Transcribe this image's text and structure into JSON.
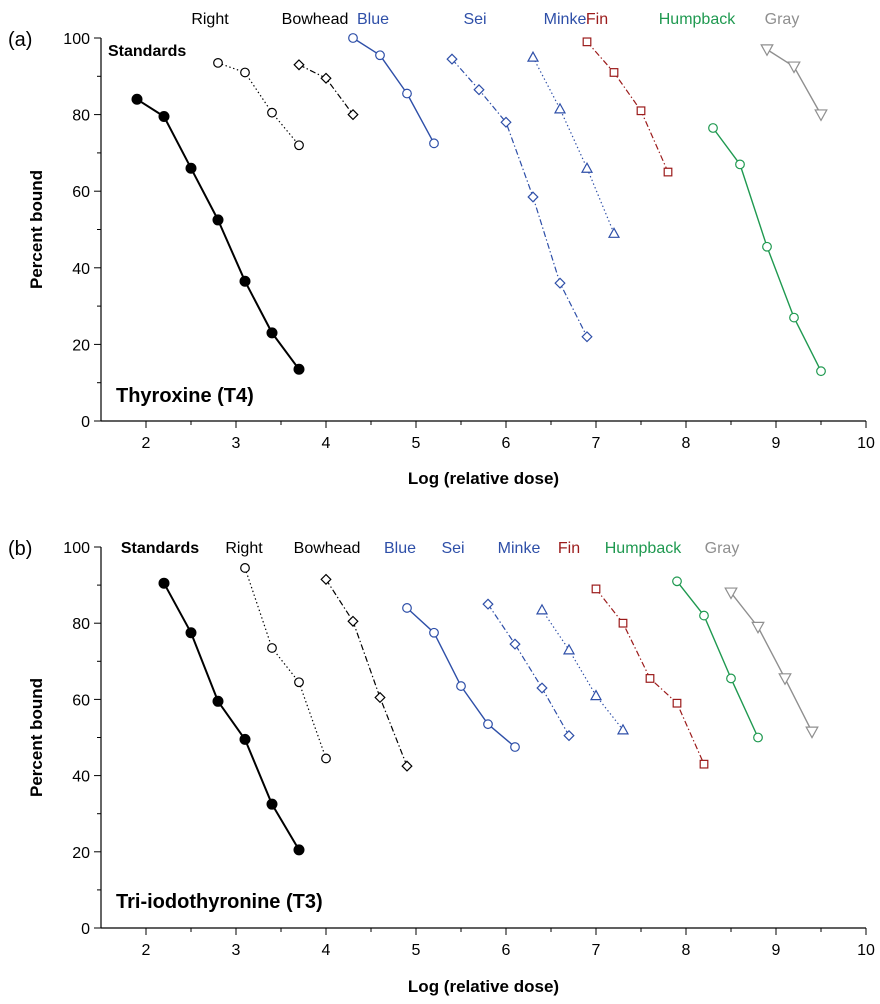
{
  "chart_data": [
    {
      "type": "line",
      "panel_letter": "(a)",
      "title": "Thyroxine (T4)",
      "xlabel": "Log (relative dose)",
      "ylabel": "Percent bound",
      "xlim": [
        1.5,
        10
      ],
      "ylim": [
        0,
        100
      ],
      "xticks": [
        "2",
        "3",
        "4",
        "5",
        "6",
        "7",
        "8",
        "9",
        "10"
      ],
      "yticks": [
        "0",
        "20",
        "40",
        "60",
        "80",
        "100"
      ],
      "grid": false,
      "series": [
        {
          "name": "Standards",
          "color": "#000000",
          "marker": "filled-circle",
          "line": "solid",
          "x": [
            1.9,
            2.2,
            2.5,
            2.8,
            3.1,
            3.4,
            3.7
          ],
          "y": [
            84,
            79.5,
            66,
            52.5,
            36.5,
            23,
            13.5
          ]
        },
        {
          "name": "Right",
          "color": "#000000",
          "marker": "circle",
          "line": "dotted",
          "x": [
            2.8,
            3.1,
            3.4,
            3.7
          ],
          "y": [
            93.5,
            91,
            80.5,
            72
          ]
        },
        {
          "name": "Bowhead",
          "color": "#000000",
          "marker": "diamond",
          "line": "dashdot",
          "x": [
            3.7,
            4.0,
            4.3
          ],
          "y": [
            93,
            89.5,
            80
          ]
        },
        {
          "name": "Blue",
          "color": "#2e4fa8",
          "marker": "circle",
          "line": "solid",
          "x": [
            4.3,
            4.6,
            4.9,
            5.2
          ],
          "y": [
            100,
            95.5,
            85.5,
            72.5
          ]
        },
        {
          "name": "Sei",
          "color": "#2e4fa8",
          "marker": "diamond",
          "line": "dashdot",
          "x": [
            5.4,
            5.7,
            6.0,
            6.3,
            6.6,
            6.9
          ],
          "y": [
            94.5,
            86.5,
            78,
            58.5,
            36,
            22
          ]
        },
        {
          "name": "Minke",
          "color": "#2e4fa8",
          "marker": "triangle",
          "line": "dotted",
          "x": [
            6.3,
            6.6,
            6.9,
            7.2
          ],
          "y": [
            95,
            81.5,
            66,
            49
          ]
        },
        {
          "name": "Fin",
          "color": "#9b1b1b",
          "marker": "square",
          "line": "dashdot",
          "x": [
            6.9,
            7.2,
            7.5,
            7.8
          ],
          "y": [
            99,
            91,
            81,
            65
          ]
        },
        {
          "name": "Humpback",
          "color": "#1f9950",
          "marker": "circle",
          "line": "solid",
          "x": [
            8.3,
            8.6,
            8.9,
            9.2,
            9.5
          ],
          "y": [
            76.5,
            67,
            45.5,
            27,
            13
          ]
        },
        {
          "name": "Gray",
          "color": "#8f8f8f",
          "marker": "triangle-down",
          "line": "solid",
          "x": [
            8.9,
            9.2,
            9.5
          ],
          "y": [
            97,
            92.5,
            80
          ]
        }
      ]
    },
    {
      "type": "line",
      "panel_letter": "(b)",
      "title": "Tri-iodothyronine (T3)",
      "xlabel": "Log (relative dose)",
      "ylabel": "Percent bound",
      "xlim": [
        1.5,
        10
      ],
      "ylim": [
        0,
        100
      ],
      "xticks": [
        "2",
        "3",
        "4",
        "5",
        "6",
        "7",
        "8",
        "9",
        "10"
      ],
      "yticks": [
        "0",
        "20",
        "40",
        "60",
        "80",
        "100"
      ],
      "grid": false,
      "series": [
        {
          "name": "Standards",
          "color": "#000000",
          "marker": "filled-circle",
          "line": "solid",
          "x": [
            2.2,
            2.5,
            2.8,
            3.1,
            3.4,
            3.7
          ],
          "y": [
            90.5,
            77.5,
            59.5,
            49.5,
            32.5,
            20.5
          ]
        },
        {
          "name": "Right",
          "color": "#000000",
          "marker": "circle",
          "line": "dotted",
          "x": [
            3.1,
            3.4,
            3.7,
            4.0
          ],
          "y": [
            94.5,
            73.5,
            64.5,
            44.5
          ]
        },
        {
          "name": "Bowhead",
          "color": "#000000",
          "marker": "diamond",
          "line": "dashdot",
          "x": [
            4.0,
            4.3,
            4.6,
            4.9
          ],
          "y": [
            91.5,
            80.5,
            60.5,
            42.5
          ]
        },
        {
          "name": "Blue",
          "color": "#2e4fa8",
          "marker": "circle",
          "line": "solid",
          "x": [
            4.9,
            5.2,
            5.5,
            5.8,
            6.1
          ],
          "y": [
            84,
            77.5,
            63.5,
            53.5,
            47.5
          ]
        },
        {
          "name": "Sei",
          "color": "#2e4fa8",
          "marker": "diamond",
          "line": "dashdot",
          "x": [
            5.8,
            6.1,
            6.4,
            6.7
          ],
          "y": [
            85,
            74.5,
            63,
            50.5
          ]
        },
        {
          "name": "Minke",
          "color": "#2e4fa8",
          "marker": "triangle",
          "line": "dotted",
          "x": [
            6.4,
            6.7,
            7.0,
            7.3
          ],
          "y": [
            83.5,
            73,
            61,
            52
          ]
        },
        {
          "name": "Fin",
          "color": "#9b1b1b",
          "marker": "square",
          "line": "dashdot",
          "x": [
            7.0,
            7.3,
            7.6,
            7.9,
            8.2
          ],
          "y": [
            89,
            80,
            65.5,
            59,
            43
          ]
        },
        {
          "name": "Humpback",
          "color": "#1f9950",
          "marker": "circle",
          "line": "solid",
          "x": [
            7.9,
            8.2,
            8.5,
            8.8
          ],
          "y": [
            91,
            82,
            65.5,
            50
          ]
        },
        {
          "name": "Gray",
          "color": "#8f8f8f",
          "marker": "triangle-down",
          "line": "solid",
          "x": [
            8.5,
            8.8,
            9.1,
            9.4
          ],
          "y": [
            88,
            79,
            65.5,
            51.5
          ]
        }
      ]
    }
  ]
}
